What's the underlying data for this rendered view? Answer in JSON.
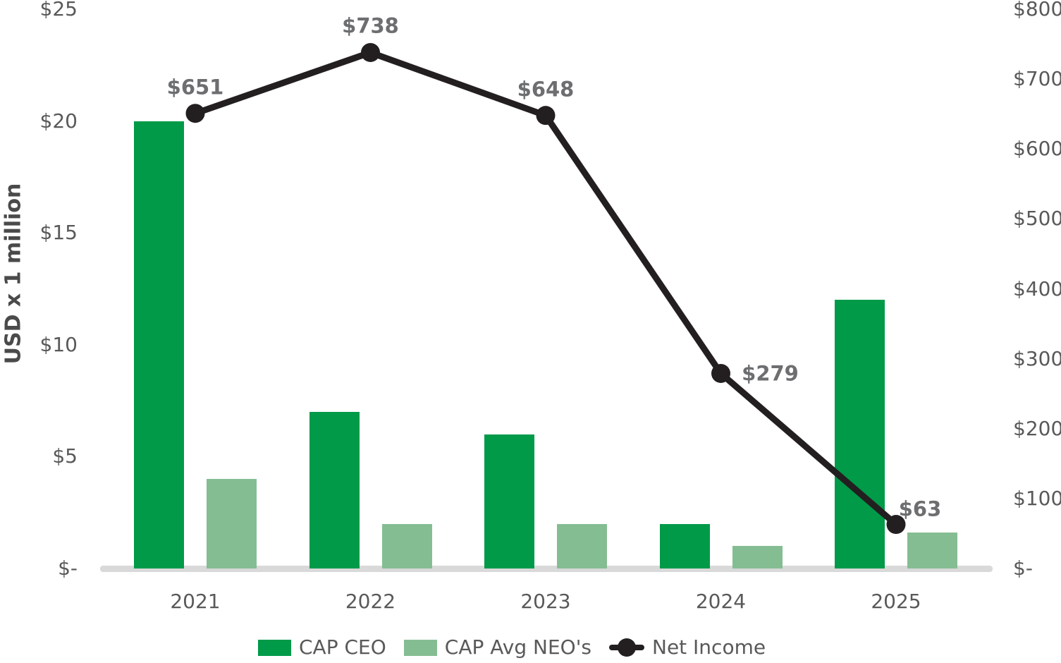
{
  "chart_data": {
    "type": "combo",
    "categories": [
      "2021",
      "2022",
      "2023",
      "2024",
      "2025"
    ],
    "series": [
      {
        "name": "CAP CEO",
        "type": "bar",
        "axis": "left",
        "color": "#009a49",
        "values": [
          20,
          7,
          6,
          2,
          12
        ]
      },
      {
        "name": "CAP Avg NEO's",
        "type": "bar",
        "axis": "left",
        "color": "#85bd92",
        "values": [
          4,
          2,
          2,
          1,
          1.6
        ]
      },
      {
        "name": "Net Income",
        "type": "line",
        "axis": "right",
        "color": "#231f20",
        "values": [
          651,
          738,
          648,
          279,
          63
        ],
        "data_labels": [
          "$651",
          "$738",
          "$648",
          "$279",
          "$63"
        ],
        "label_placements": [
          "above",
          "above",
          "above",
          "right",
          "above-right"
        ]
      }
    ],
    "left_axis": {
      "title": "USD x 1 million",
      "range": [
        0,
        25
      ],
      "tick_values": [
        25,
        20,
        15,
        10,
        5,
        0
      ],
      "tick_labels": [
        "$25",
        "$20",
        "$15",
        "$10",
        "$5",
        "$-"
      ]
    },
    "right_axis": {
      "title": "",
      "range": [
        0,
        800
      ],
      "tick_values": [
        800,
        700,
        600,
        500,
        400,
        300,
        200,
        100,
        0
      ],
      "tick_labels": [
        "$800",
        "$700",
        "$600",
        "$500",
        "$400",
        "$300",
        "$200",
        "$100",
        "$-"
      ]
    },
    "legend": [
      {
        "label": "CAP CEO",
        "type": "bar",
        "color": "#009a49"
      },
      {
        "label": "CAP Avg NEO's",
        "type": "bar",
        "color": "#85bd92"
      },
      {
        "label": "Net Income",
        "type": "line",
        "color": "#231f20"
      }
    ],
    "layout_hints": {
      "grid": "off",
      "legend_position": "bottom",
      "background": "#ffffff",
      "tick_text_color": "#595959",
      "data_label_color": "#6d6e70",
      "axis_line_color": "#d9d9d9"
    }
  }
}
